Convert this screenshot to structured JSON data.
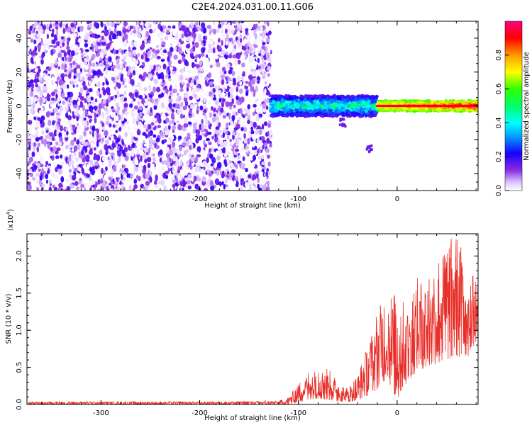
{
  "title": "C2E4.2024.031.00.11.G06",
  "colors": {
    "snr_line": "#e8302a",
    "axis": "#000000",
    "background": "#ffffff"
  },
  "chart_data": [
    {
      "type": "heatmap",
      "title": "C2E4.2024.031.00.11.G06",
      "xlabel": "Height of straight line (km)",
      "ylabel": "Frequency (Hz)",
      "xlim": [
        -375,
        82
      ],
      "ylim": [
        -50,
        50
      ],
      "x_ticks": [
        -300,
        -200,
        -100,
        0
      ],
      "x_tick_labels": [
        "-300",
        "-200",
        "-100",
        "0"
      ],
      "y_ticks": [
        -40,
        -20,
        0,
        20,
        40
      ],
      "y_tick_labels": [
        "-40",
        "-20",
        "0",
        "20",
        "40"
      ],
      "colorbar": {
        "label": "Normalized spectral amplitude",
        "range": [
          0,
          1
        ],
        "ticks": [
          0.0,
          0.2,
          0.4,
          0.6,
          0.8
        ],
        "tick_labels": [
          "0.0",
          "0.2",
          "0.4",
          "0.6",
          "0.8"
        ]
      },
      "regions": [
        {
          "name": "",
          "x_range": [
            -375,
            -128
          ],
          "freq_range": [
            -50,
            50
          ],
          "amplitude_range": [
            0.0,
            0.2
          ]
        },
        {
          "name": "",
          "x_range": [
            -128,
            -20
          ],
          "freq_center": 0,
          "freq_halfwidth": 6,
          "amplitude_range": [
            0.15,
            0.6
          ]
        },
        {
          "name": "",
          "x_range": [
            -20,
            82
          ],
          "freq_center": 0,
          "freq_halfwidth": 3,
          "amplitude_range": [
            0.6,
            1.0
          ]
        }
      ],
      "features": [
        {
          "x": -55,
          "freq": -10,
          "amplitude": 0.15
        },
        {
          "x": -28,
          "freq": -26,
          "amplitude": 0.15
        }
      ]
    },
    {
      "type": "line",
      "xlabel": "Height of straight line (km)",
      "ylabel": "SNR (10 * v/v)",
      "y_multiplier": "(x10⁴)",
      "y_multiplier_base": "(x10",
      "y_multiplier_exp": "4",
      "y_multiplier_close": ")",
      "xlim": [
        -375,
        82
      ],
      "ylim": [
        0,
        2.3
      ],
      "x_ticks": [
        -300,
        -200,
        -100,
        0
      ],
      "x_tick_labels": [
        "-300",
        "-200",
        "-100",
        "0"
      ],
      "y_ticks": [
        0.0,
        0.5,
        1.0,
        1.5,
        2.0
      ],
      "y_tick_labels": [
        "0.0",
        "0.5",
        "1.0",
        "1.5",
        "2.0"
      ],
      "series": [
        {
          "color": "#e8302a",
          "envelope_x": [
            -375,
            -300,
            -200,
            -120,
            -110,
            -100,
            -90,
            -80,
            -70,
            -60,
            -50,
            -40,
            -30,
            -20,
            -10,
            0,
            10,
            20,
            30,
            40,
            50,
            60,
            70,
            82
          ],
          "envelope_max": [
            0.04,
            0.04,
            0.04,
            0.05,
            0.1,
            0.28,
            0.45,
            0.52,
            0.5,
            0.3,
            0.22,
            0.4,
            0.8,
            1.3,
            1.5,
            1.5,
            1.4,
            1.7,
            1.8,
            1.95,
            2.2,
            2.3,
            2.0,
            1.6
          ],
          "envelope_min": [
            0.0,
            0.0,
            0.0,
            0.0,
            0.0,
            0.03,
            0.06,
            0.08,
            0.06,
            0.04,
            0.03,
            0.05,
            0.12,
            0.2,
            0.35,
            0.05,
            0.3,
            0.45,
            0.5,
            0.55,
            0.6,
            0.65,
            0.6,
            0.9
          ]
        }
      ]
    }
  ]
}
